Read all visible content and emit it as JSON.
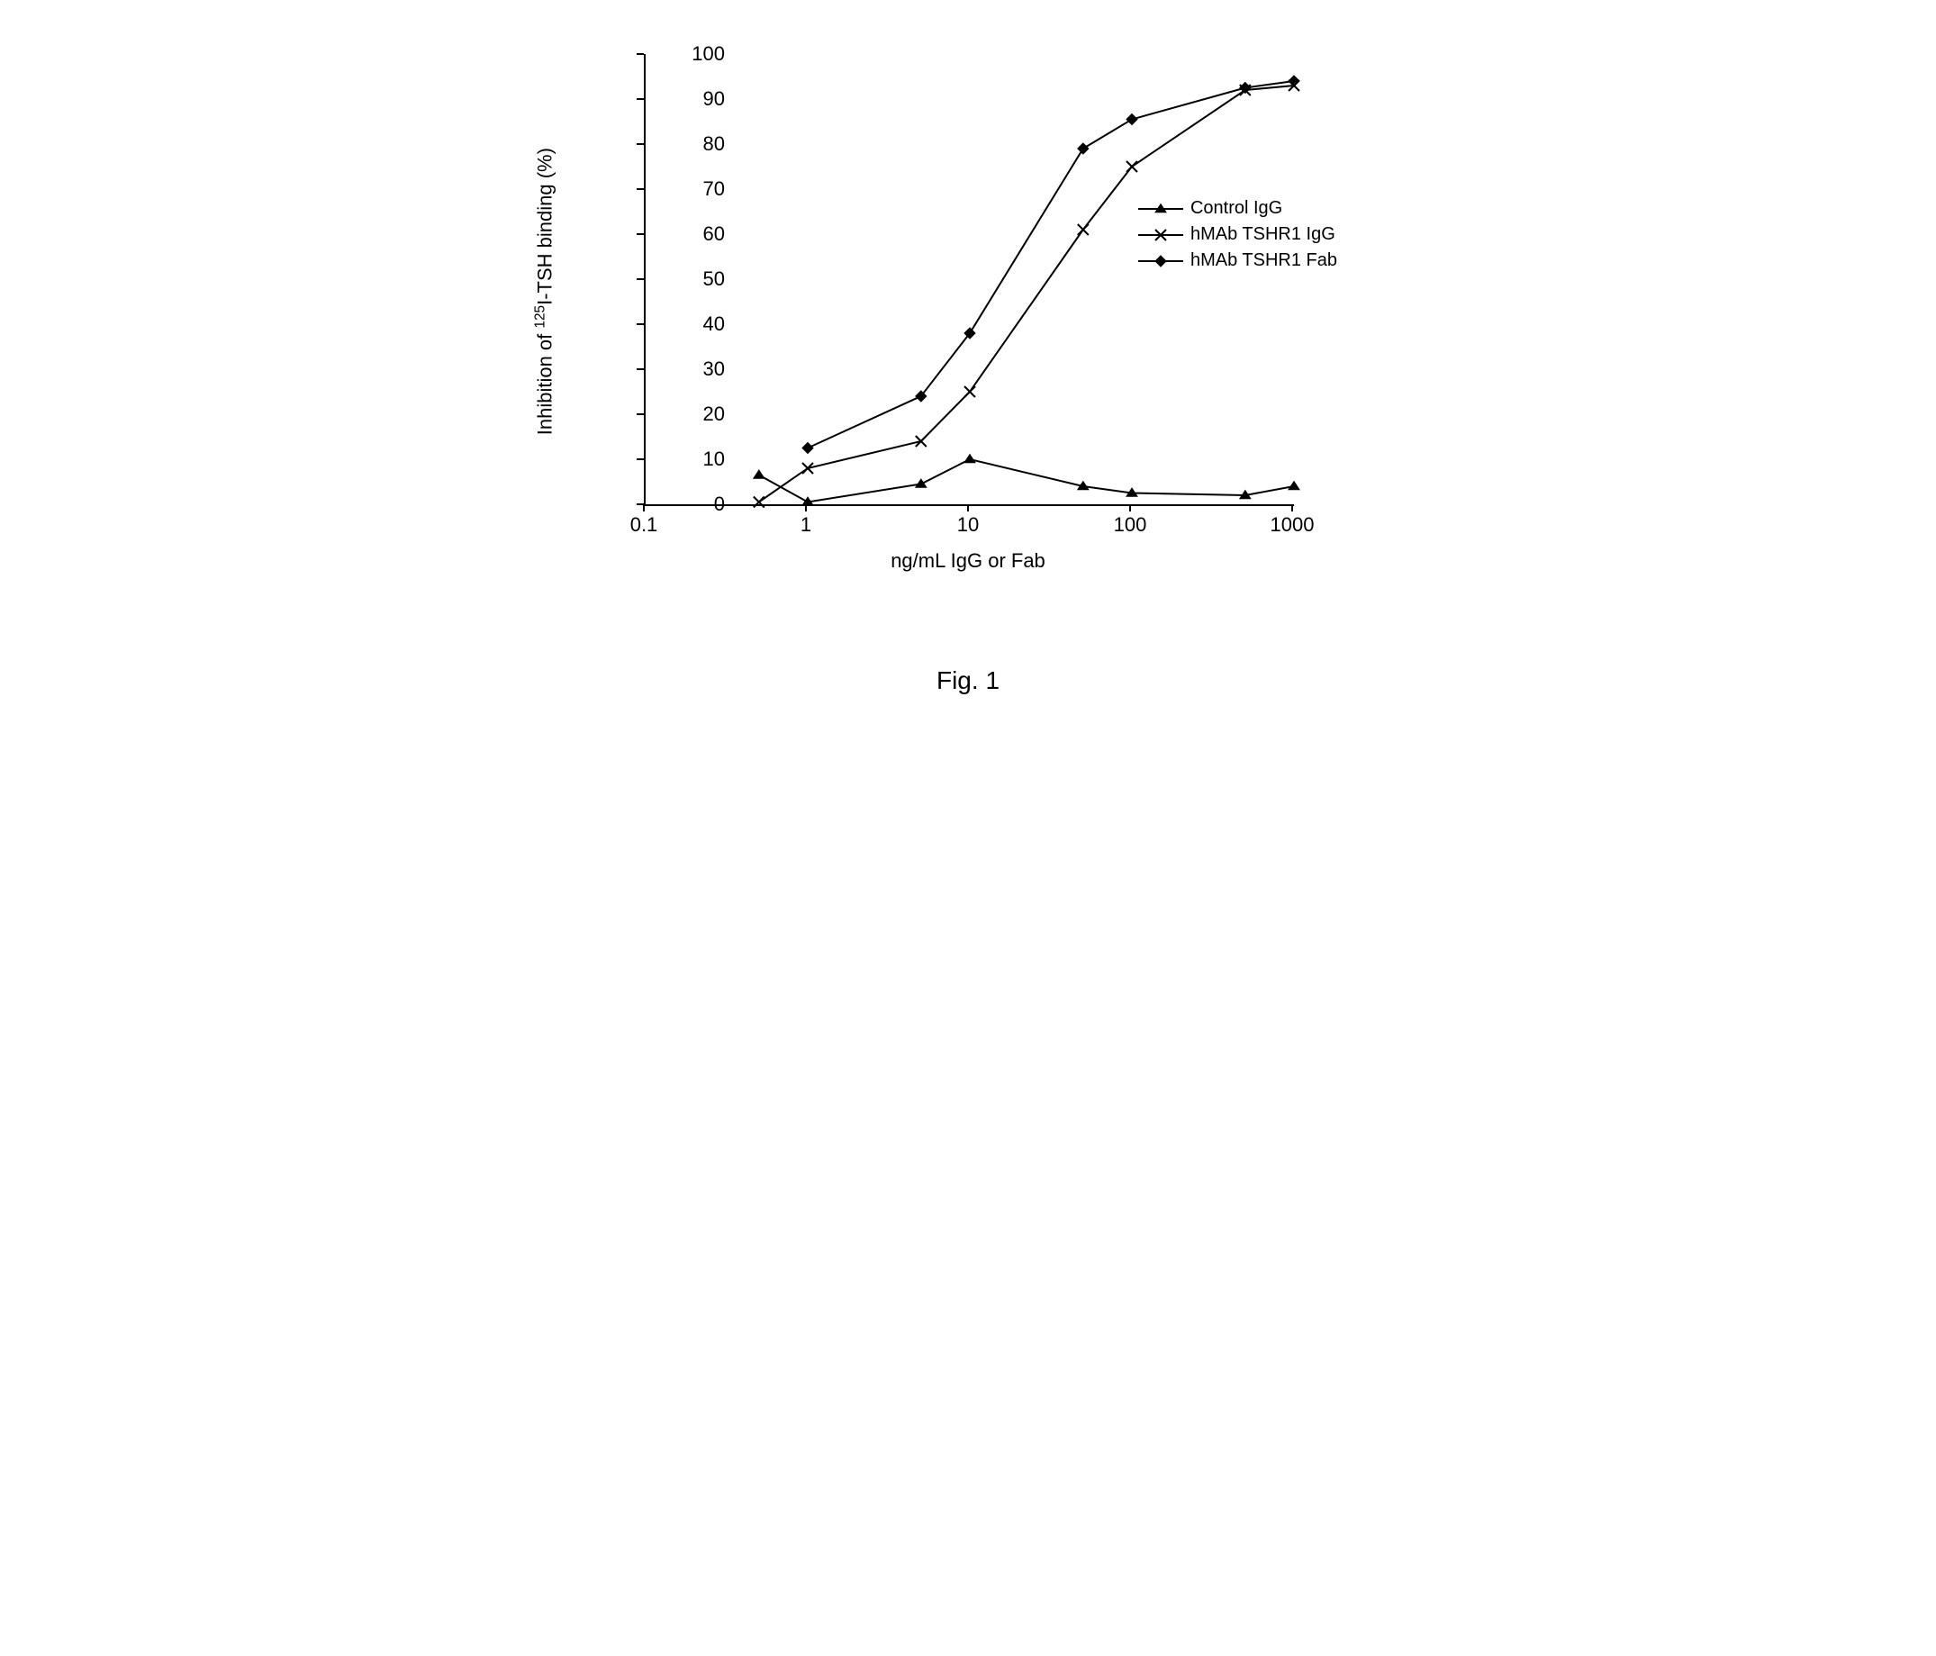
{
  "chart": {
    "type": "line",
    "xscale": "log",
    "yscale": "linear",
    "xlim": [
      0.1,
      1000
    ],
    "ylim": [
      0,
      100
    ],
    "xlabel": "ng/mL IgG or Fab",
    "ylabel_prefix": "Inhibition of ",
    "ylabel_sup": "125",
    "ylabel_suffix": "I-TSH binding (%)",
    "xticks": [
      0.1,
      1,
      10,
      100,
      1000
    ],
    "xtick_labels": [
      "0.1",
      "1",
      "10",
      "100",
      "1000"
    ],
    "yticks": [
      0,
      10,
      20,
      30,
      40,
      50,
      60,
      70,
      80,
      90,
      100
    ],
    "ytick_labels": [
      "0",
      "10",
      "20",
      "30",
      "40",
      "50",
      "60",
      "70",
      "80",
      "90",
      "100"
    ],
    "axis_color": "#000000",
    "background_color": "#ffffff",
    "line_width": 2,
    "marker_size": 10,
    "label_fontsize": 22,
    "tick_fontsize": 22,
    "series": [
      {
        "name": "Control IgG",
        "marker": "triangle-filled",
        "color": "#000000",
        "x": [
          0.5,
          1,
          5,
          10,
          50,
          100,
          500,
          1000
        ],
        "y": [
          6.5,
          0.5,
          4.5,
          10,
          4,
          2.5,
          2,
          4
        ]
      },
      {
        "name": "hMAb TSHR1 IgG",
        "marker": "x",
        "color": "#000000",
        "x": [
          0.5,
          1,
          5,
          10,
          50,
          100,
          500,
          1000
        ],
        "y": [
          0.5,
          8,
          14,
          25,
          61,
          75,
          92,
          93
        ]
      },
      {
        "name": "hMAb TSHR1 Fab",
        "marker": "diamond-filled",
        "color": "#000000",
        "x": [
          1,
          5,
          10,
          50,
          100,
          500,
          1000
        ],
        "y": [
          12.5,
          24,
          38,
          79,
          85.5,
          92.5,
          94
        ]
      }
    ],
    "legend_position": "right-center"
  },
  "caption": "Fig. 1"
}
